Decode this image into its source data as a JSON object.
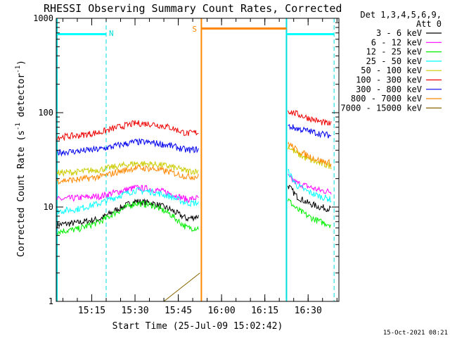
{
  "chart_data": {
    "type": "line",
    "title": "RHESSI Observing Summary Count Rates, Corrected",
    "ylabel": "Corrected Count Rate (s⁻¹ detector⁻¹)",
    "xlabel": "Start Time (25-Jul-09 15:02:42)",
    "yscale": "log",
    "ylim": [
      1,
      1000
    ],
    "xlim": [
      "15:02:42",
      "16:40:40"
    ],
    "ytick_labels": [
      "1",
      "10",
      "100",
      "1000"
    ],
    "xtick_labels": [
      "15:15",
      "15:30",
      "15:45",
      "16:00",
      "16:15",
      "16:30"
    ],
    "legend": {
      "placement": "right",
      "header": [
        "Det 1,3,4,5,6,9,",
        "Att 0"
      ],
      "entries": [
        {
          "label": "3 - 6 keV",
          "color": "#000000"
        },
        {
          "label": "6 - 12 keV",
          "color": "#ff00ff"
        },
        {
          "label": "12 - 25 keV",
          "color": "#00ee00"
        },
        {
          "label": "25 - 50 keV",
          "color": "#00ffff"
        },
        {
          "label": "50 - 100 keV",
          "color": "#cccc00"
        },
        {
          "label": "100 - 300 keV",
          "color": "#ee0000"
        },
        {
          "label": "300 - 800 keV",
          "color": "#0000ee"
        },
        {
          "label": "800 - 7000 keV",
          "color": "#ff8800"
        },
        {
          "label": "7000 - 15000 keV",
          "color": "#886600"
        }
      ]
    },
    "annotations": [
      {
        "text": "N",
        "type": "night",
        "color": "#00dddd"
      },
      {
        "text": "S",
        "type": "saa",
        "color": "#ff8800"
      }
    ],
    "intervals": {
      "night": [
        [
          "15:02:42",
          "15:20:00"
        ],
        [
          "16:22:30",
          "16:39:00"
        ]
      ],
      "saa": [
        [
          "15:53:00",
          "16:22:30"
        ]
      ],
      "coverage": [
        "15:02:42",
        "16:40:00"
      ]
    },
    "series": [
      {
        "name": "3 - 6 keV",
        "x": [
          "15:03",
          "15:10",
          "15:18",
          "15:24",
          "15:30",
          "15:36",
          "15:42",
          "15:48",
          "15:52",
          "16:23",
          "16:26",
          "16:30",
          "16:34",
          "16:38"
        ],
        "y": [
          6.5,
          6.8,
          7.5,
          9.5,
          11.5,
          11,
          9.5,
          7.5,
          8,
          17,
          13,
          11,
          10,
          9.5
        ]
      },
      {
        "name": "6 - 12 keV",
        "x": [
          "15:03",
          "15:10",
          "15:18",
          "15:24",
          "15:30",
          "15:36",
          "15:42",
          "15:48",
          "15:52",
          "16:23",
          "16:26",
          "16:30",
          "16:34",
          "16:38"
        ],
        "y": [
          12,
          12.5,
          13,
          14.5,
          16,
          15.5,
          14,
          12,
          12.5,
          21,
          18,
          16.5,
          15,
          14.5
        ]
      },
      {
        "name": "12 - 25 keV",
        "x": [
          "15:03",
          "15:10",
          "15:18",
          "15:24",
          "15:30",
          "15:36",
          "15:42",
          "15:48",
          "15:52",
          "16:23",
          "16:26",
          "16:30",
          "16:34",
          "16:38"
        ],
        "y": [
          5.5,
          5.8,
          7,
          9,
          11,
          10.5,
          8.5,
          6,
          6,
          12,
          9.5,
          8,
          7,
          6.5
        ]
      },
      {
        "name": "25 - 50 keV",
        "x": [
          "15:03",
          "15:10",
          "15:18",
          "15:24",
          "15:30",
          "15:36",
          "15:42",
          "15:48",
          "15:52",
          "16:23",
          "16:26",
          "16:30",
          "16:34",
          "16:38"
        ],
        "y": [
          9,
          9.5,
          11,
          13,
          15,
          14.5,
          13,
          11,
          11,
          24,
          17,
          14.5,
          13,
          12
        ]
      },
      {
        "name": "50 - 100 keV",
        "x": [
          "15:03",
          "15:10",
          "15:18",
          "15:24",
          "15:30",
          "15:36",
          "15:42",
          "15:48",
          "15:52",
          "16:23",
          "16:26",
          "16:30",
          "16:34",
          "16:38"
        ],
        "y": [
          23,
          23.5,
          25,
          27,
          29,
          28.5,
          27,
          24,
          24,
          44,
          37,
          32,
          29,
          27
        ]
      },
      {
        "name": "100 - 300 keV",
        "x": [
          "15:03",
          "15:10",
          "15:18",
          "15:24",
          "15:30",
          "15:36",
          "15:42",
          "15:48",
          "15:52",
          "16:23",
          "16:26",
          "16:30",
          "16:34",
          "16:38"
        ],
        "y": [
          55,
          57,
          62,
          70,
          77,
          76,
          70,
          60,
          62,
          105,
          97,
          88,
          80,
          75
        ]
      },
      {
        "name": "300 - 800 keV",
        "x": [
          "15:03",
          "15:10",
          "15:18",
          "15:24",
          "15:30",
          "15:36",
          "15:42",
          "15:48",
          "15:52",
          "16:23",
          "16:26",
          "16:30",
          "16:34",
          "16:38"
        ],
        "y": [
          38,
          39,
          41,
          45,
          49,
          48,
          45,
          40,
          41,
          72,
          68,
          64,
          60,
          57
        ]
      },
      {
        "name": "800 - 7000 keV",
        "x": [
          "15:03",
          "15:10",
          "15:18",
          "15:24",
          "15:30",
          "15:36",
          "15:42",
          "15:48",
          "15:52",
          "16:23",
          "16:26",
          "16:30",
          "16:34",
          "16:38"
        ],
        "y": [
          19,
          19.5,
          21,
          23.5,
          26,
          25.5,
          23.5,
          21,
          21,
          48,
          40,
          35,
          31,
          29
        ]
      },
      {
        "name": "7000 - 15000 keV",
        "x": [
          "15:25",
          "15:40",
          "15:52.5"
        ],
        "y": [
          1,
          1,
          2
        ]
      },
      {
        "name": "attenuator",
        "x": [
          "15:03",
          "15:53",
          "16:22"
        ],
        "y": [
          750,
          750,
          650
        ]
      }
    ]
  },
  "footer": {
    "timestamp": "15-Oct-2021 08:21"
  }
}
